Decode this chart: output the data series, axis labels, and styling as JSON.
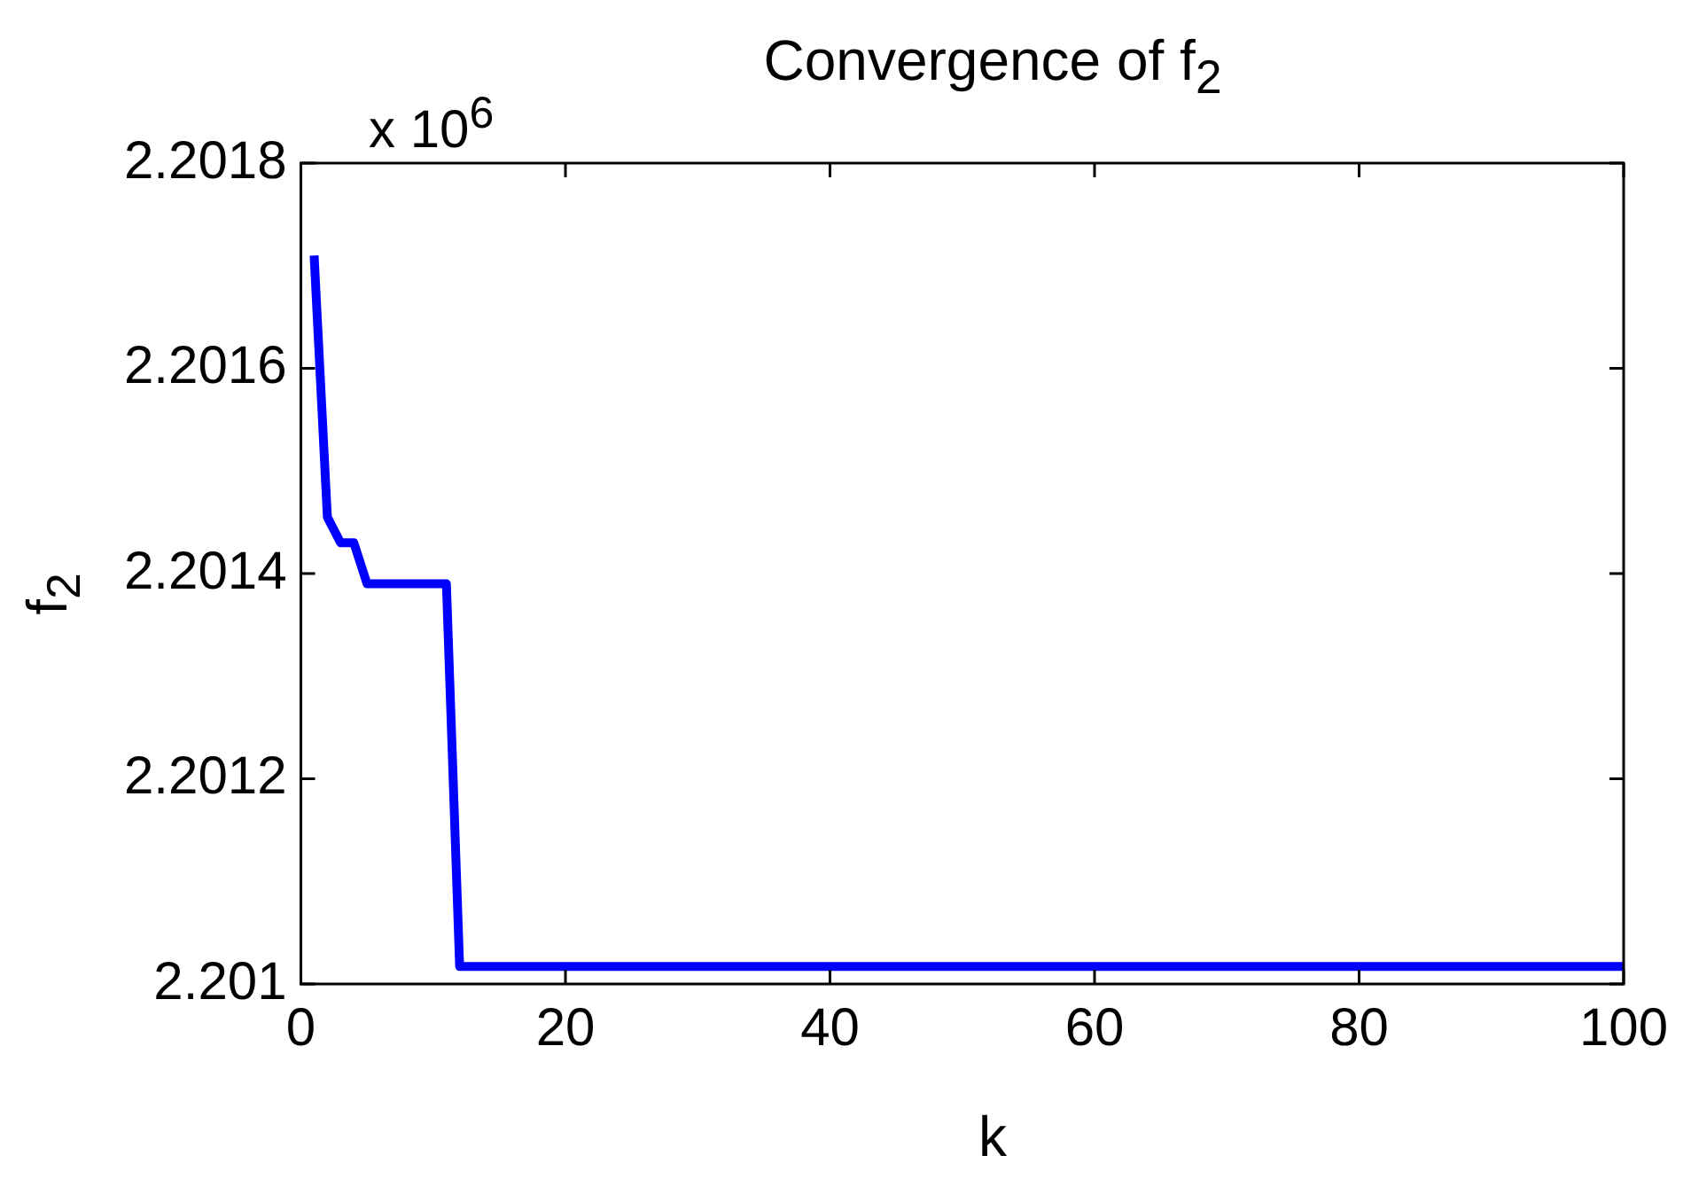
{
  "chart_data": {
    "type": "line",
    "title": "Convergence of f$_{2}$",
    "xlabel": "k",
    "ylabel": "f$_{2}$",
    "annotations": [
      "x 10$^{6}$"
    ],
    "x": [
      1,
      2,
      3,
      4,
      5,
      6,
      7,
      8,
      9,
      10,
      11,
      12,
      100
    ],
    "series": [
      {
        "color": "#0000ff",
        "values": [
          2.20171,
          2.201455,
          2.20143,
          2.20143,
          2.20139,
          2.20139,
          2.20139,
          2.20139,
          2.20139,
          2.20139,
          2.20139,
          2.201017,
          2.201017
        ]
      }
    ],
    "xlim": [
      0,
      100
    ],
    "xticks": [
      0,
      20,
      40,
      60,
      80,
      100
    ],
    "ylim": [
      2.201,
      2.2018
    ],
    "yticks": [
      2.201,
      2.2012,
      2.2014,
      2.2016,
      2.2018
    ],
    "legend": false,
    "marker": "none",
    "line_style": "solid"
  }
}
